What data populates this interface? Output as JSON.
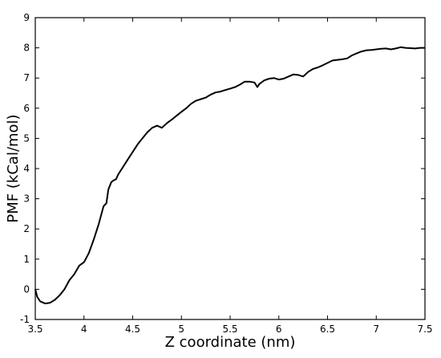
{
  "chart_data": {
    "type": "line",
    "title": "",
    "xlabel": "Z coordinate (nm)",
    "ylabel": "PMF (kCal/mol)",
    "xlim": [
      3.5,
      7.5
    ],
    "ylim": [
      -1,
      9
    ],
    "xticks": [
      3.5,
      4,
      4.5,
      5,
      5.5,
      6,
      6.5,
      7,
      7.5
    ],
    "xtick_labels": [
      "3.5",
      "4",
      "4.5",
      "5",
      "5.5",
      "6",
      "6.5",
      "7",
      "7.5"
    ],
    "yticks": [
      -1,
      0,
      1,
      2,
      3,
      4,
      5,
      6,
      7,
      8,
      9
    ],
    "ytick_labels": [
      "-1",
      "0",
      "1",
      "2",
      "3",
      "4",
      "5",
      "6",
      "7",
      "8",
      "9"
    ],
    "grid": false,
    "legend": "none",
    "line_color": "#000000",
    "series": [
      {
        "x": [
          3.5,
          3.52,
          3.55,
          3.6,
          3.65,
          3.7,
          3.75,
          3.8,
          3.85,
          3.9,
          3.95,
          4.0,
          4.05,
          4.1,
          4.15,
          4.2,
          4.23,
          4.25,
          4.28,
          4.3,
          4.33,
          4.35,
          4.4,
          4.45,
          4.5,
          4.55,
          4.6,
          4.65,
          4.7,
          4.75,
          4.8,
          4.85,
          4.9,
          4.95,
          5.0,
          5.05,
          5.1,
          5.15,
          5.2,
          5.25,
          5.3,
          5.35,
          5.4,
          5.45,
          5.5,
          5.55,
          5.6,
          5.65,
          5.7,
          5.75,
          5.78,
          5.8,
          5.85,
          5.9,
          5.95,
          6.0,
          6.05,
          6.1,
          6.15,
          6.2,
          6.25,
          6.3,
          6.35,
          6.4,
          6.45,
          6.5,
          6.55,
          6.6,
          6.65,
          6.7,
          6.75,
          6.8,
          6.85,
          6.9,
          6.95,
          7.0,
          7.05,
          7.1,
          7.15,
          7.2,
          7.25,
          7.3,
          7.35,
          7.4,
          7.45,
          7.5
        ],
        "y": [
          0.0,
          -0.25,
          -0.4,
          -0.47,
          -0.45,
          -0.35,
          -0.2,
          0.0,
          0.3,
          0.5,
          0.78,
          0.9,
          1.2,
          1.65,
          2.15,
          2.75,
          2.85,
          3.3,
          3.55,
          3.6,
          3.65,
          3.8,
          4.05,
          4.3,
          4.55,
          4.8,
          5.0,
          5.2,
          5.35,
          5.42,
          5.35,
          5.5,
          5.62,
          5.75,
          5.88,
          6.0,
          6.15,
          6.25,
          6.3,
          6.35,
          6.45,
          6.52,
          6.55,
          6.6,
          6.65,
          6.7,
          6.78,
          6.88,
          6.88,
          6.85,
          6.7,
          6.8,
          6.92,
          6.98,
          7.0,
          6.95,
          6.98,
          7.05,
          7.12,
          7.1,
          7.05,
          7.2,
          7.3,
          7.35,
          7.42,
          7.5,
          7.58,
          7.6,
          7.62,
          7.65,
          7.75,
          7.82,
          7.88,
          7.92,
          7.93,
          7.95,
          7.97,
          7.98,
          7.95,
          7.98,
          8.02,
          8.0,
          7.99,
          7.98,
          8.0,
          8.0
        ]
      }
    ]
  }
}
